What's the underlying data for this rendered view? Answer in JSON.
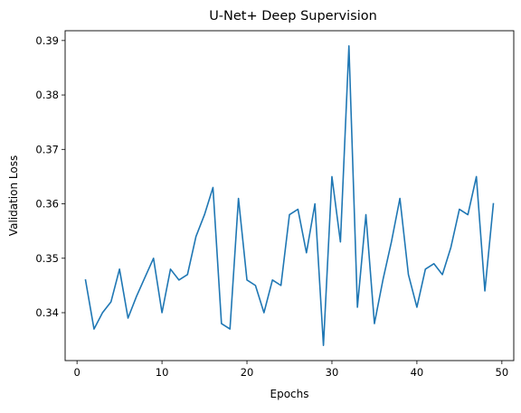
{
  "chart_data": {
    "type": "line",
    "title": "U-Net+ Deep Supervision",
    "xlabel": "Epochs",
    "ylabel": "Validation Loss",
    "xlim": [
      -1.4,
      51.4
    ],
    "ylim": [
      0.3312,
      0.3918
    ],
    "xticks": [
      0,
      10,
      20,
      30,
      40,
      50
    ],
    "xtick_labels": [
      "0",
      "10",
      "20",
      "30",
      "40",
      "50"
    ],
    "yticks": [
      0.34,
      0.35,
      0.36,
      0.37,
      0.38,
      0.39
    ],
    "ytick_labels": [
      "0.34",
      "0.35",
      "0.36",
      "0.37",
      "0.38",
      "0.39"
    ],
    "grid": false,
    "legend": "none",
    "series": [
      {
        "color": "#1f77b4",
        "x": [
          1,
          2,
          3,
          4,
          5,
          6,
          7,
          8,
          9,
          10,
          11,
          12,
          13,
          14,
          15,
          16,
          17,
          18,
          19,
          20,
          21,
          22,
          23,
          24,
          25,
          26,
          27,
          28,
          29,
          30,
          31,
          32,
          33,
          34,
          35,
          36,
          37,
          38,
          39,
          40,
          41,
          42,
          43,
          44,
          45,
          46,
          47,
          48,
          49
        ],
        "y": [
          0.346,
          0.337,
          0.34,
          0.342,
          0.348,
          0.339,
          0.343,
          0.3465,
          0.35,
          0.34,
          0.348,
          0.346,
          0.347,
          0.354,
          0.358,
          0.363,
          0.338,
          0.337,
          0.361,
          0.346,
          0.345,
          0.34,
          0.346,
          0.345,
          0.358,
          0.359,
          0.351,
          0.36,
          0.334,
          0.365,
          0.353,
          0.389,
          0.341,
          0.358,
          0.338,
          0.346,
          0.353,
          0.361,
          0.347,
          0.341,
          0.348,
          0.349,
          0.347,
          0.352,
          0.359,
          0.358,
          0.365,
          0.344,
          0.36
        ]
      }
    ]
  }
}
